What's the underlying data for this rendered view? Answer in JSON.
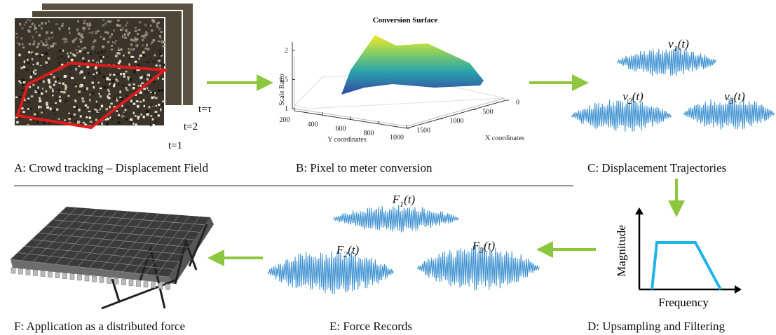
{
  "panel_a": {
    "caption": "A: Crowd tracking – Displacement Field",
    "frame_labels": [
      "t=τ",
      "t=2",
      "t=1"
    ]
  },
  "panel_b": {
    "caption": "B: Pixel to meter conversion",
    "plot": {
      "title": "Conversion Surface",
      "zlabel": "Scale Ratio",
      "ylabel": "Y coordinates",
      "xlabel": "X coordinates",
      "zticks": [
        1,
        1.5,
        2
      ],
      "yticks": [
        200,
        400,
        600,
        800,
        1000
      ],
      "xticks": [
        0,
        500,
        1000,
        1500
      ]
    }
  },
  "panel_c": {
    "caption": "C: Displacement Trajectories",
    "signals": [
      {
        "symbol": "v",
        "index": "1",
        "arg": "(t)"
      },
      {
        "symbol": "v",
        "index": "2",
        "arg": "(t)"
      },
      {
        "symbol": "v",
        "index": "3",
        "arg": "(t)"
      }
    ]
  },
  "panel_d": {
    "caption": "D: Upsampling  and Filtering",
    "ylabel": "Magnitude",
    "xlabel": "Frequency"
  },
  "panel_e": {
    "caption": "E: Force Records",
    "signals": [
      {
        "symbol": "F",
        "index": "1",
        "arg": "(t)"
      },
      {
        "symbol": "F",
        "index": "2",
        "arg": "(t)"
      },
      {
        "symbol": "F",
        "index": "3",
        "arg": "(t)"
      }
    ]
  },
  "panel_f": {
    "caption": "F: Application as a distributed force"
  }
}
